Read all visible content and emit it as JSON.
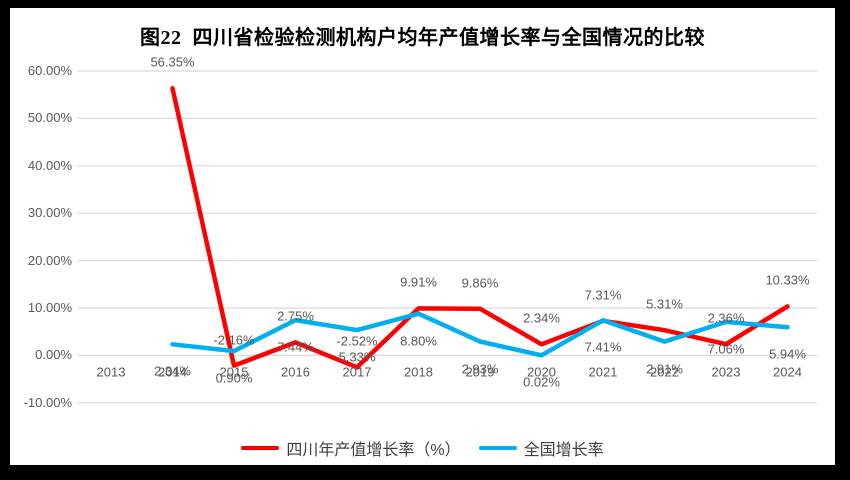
{
  "title": "图22  四川省检验检测机构户均年产值增长率与全国情况的比较",
  "colors": {
    "frame_bg": "#000000",
    "panel_bg": "#ffffff",
    "gridline": "#d9d9d9",
    "tick_text": "#595959",
    "sichuan_red": "#ff0000",
    "national_blue": "#00b0f0"
  },
  "chart_data": {
    "type": "line",
    "title": "图22  四川省检验检测机构户均年产值增长率与全国情况的比较",
    "categories": [
      "2013",
      "2014",
      "2015",
      "2016",
      "2017",
      "2018",
      "2019",
      "2020",
      "2021",
      "2022",
      "2023",
      "2024"
    ],
    "y_tick_labels": [
      "60.00%",
      "50.00%",
      "40.00%",
      "30.00%",
      "20.00%",
      "10.00%",
      "0.00%",
      "-10.00%"
    ],
    "ylim": [
      -10,
      60
    ],
    "ytick_step": 10,
    "grid": true,
    "legend_position": "bottom",
    "series": [
      {
        "name": "四川年产值增长率（%）",
        "semantic": "sichuan-series",
        "color": "#ff0000",
        "label_position": "above",
        "values": [
          null,
          56.35,
          -2.16,
          2.75,
          -2.52,
          9.91,
          9.86,
          2.34,
          7.31,
          5.31,
          2.36,
          10.33
        ],
        "labels": [
          null,
          "56.35%",
          "-2.16%",
          "2.75%",
          "-2.52%",
          "9.91%",
          "9.86%",
          "2.34%",
          "7.31%",
          "5.31%",
          "2.36%",
          "10.33%"
        ]
      },
      {
        "name": "全国增长率",
        "semantic": "national-series",
        "color": "#00b0f0",
        "label_position": "below",
        "values": [
          null,
          2.34,
          0.9,
          7.44,
          5.33,
          8.8,
          2.93,
          0.02,
          7.41,
          2.91,
          7.06,
          5.94
        ],
        "labels": [
          null,
          "2.34%",
          "0.90%",
          "7.44%",
          "5.33%",
          "8.80%",
          "2.93%",
          "0.02%",
          "7.41%",
          "2.91%",
          "7.06%",
          "5.94%"
        ]
      }
    ]
  }
}
